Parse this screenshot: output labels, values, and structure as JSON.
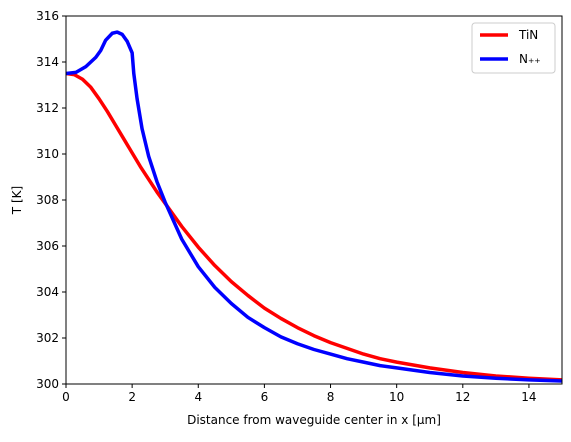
{
  "chart_data": {
    "type": "line",
    "xlabel": "Distance from waveguide center in x [µm]",
    "ylabel": "T [K]",
    "xlim": [
      0,
      15
    ],
    "ylim": [
      300,
      316
    ],
    "xticks": [
      0,
      2,
      4,
      6,
      8,
      10,
      12,
      14
    ],
    "yticks": [
      300,
      302,
      304,
      306,
      308,
      310,
      312,
      314,
      316
    ],
    "grid": false,
    "legend_position": "top-right",
    "series": [
      {
        "name": "TiN",
        "color": "#ff0000",
        "x": [
          0,
          0.25,
          0.5,
          0.75,
          1.0,
          1.25,
          1.5,
          1.75,
          2.0,
          2.25,
          2.5,
          2.75,
          3.0,
          3.5,
          4.0,
          4.5,
          5.0,
          5.5,
          6.0,
          6.5,
          7.0,
          7.5,
          8.0,
          8.5,
          9.0,
          9.5,
          10.0,
          11.0,
          12.0,
          13.0,
          14.0,
          15.0
        ],
        "y": [
          313.5,
          313.45,
          313.25,
          312.9,
          312.4,
          311.85,
          311.25,
          310.65,
          310.05,
          309.45,
          308.9,
          308.35,
          307.85,
          306.85,
          305.95,
          305.15,
          304.45,
          303.85,
          303.3,
          302.85,
          302.45,
          302.1,
          301.8,
          301.55,
          301.3,
          301.1,
          300.95,
          300.7,
          300.5,
          300.35,
          300.25,
          300.18
        ]
      },
      {
        "name": "N₊₊",
        "color": "#0000ff",
        "x": [
          0,
          0.3,
          0.6,
          0.9,
          1.05,
          1.2,
          1.4,
          1.55,
          1.7,
          1.85,
          2.0,
          2.05,
          2.15,
          2.3,
          2.5,
          2.75,
          3.0,
          3.5,
          4.0,
          4.5,
          5.0,
          5.5,
          6.0,
          6.5,
          7.0,
          7.5,
          8.0,
          8.5,
          9.0,
          9.5,
          10.0,
          11.0,
          12.0,
          13.0,
          14.0,
          15.0
        ],
        "y": [
          313.5,
          313.55,
          313.8,
          314.2,
          314.5,
          314.95,
          315.25,
          315.3,
          315.2,
          314.9,
          314.4,
          313.5,
          312.4,
          311.1,
          309.9,
          308.8,
          307.9,
          306.3,
          305.1,
          304.2,
          303.5,
          302.9,
          302.45,
          302.05,
          301.75,
          301.5,
          301.3,
          301.1,
          300.95,
          300.8,
          300.7,
          300.5,
          300.35,
          300.25,
          300.18,
          300.13
        ]
      }
    ]
  }
}
